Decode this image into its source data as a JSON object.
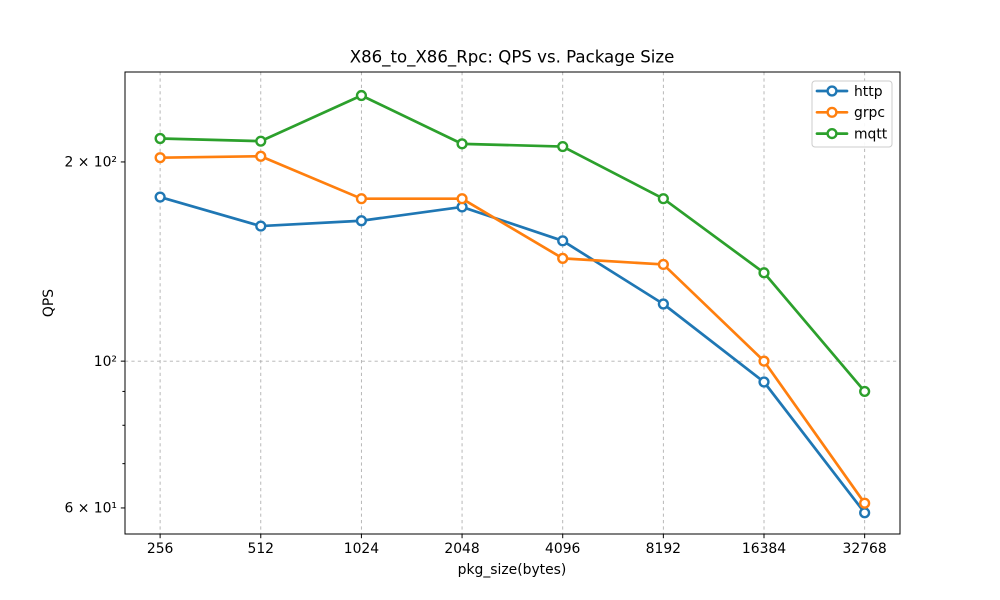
{
  "chart_data": {
    "type": "line",
    "title": "X86_to_X86_Rpc: QPS vs. Package Size",
    "xlabel": "pkg_size(bytes)",
    "ylabel": "QPS",
    "x_scale": "log2",
    "y_scale": "log10",
    "xlim": [
      201,
      41800
    ],
    "ylim": [
      54.8,
      273.5
    ],
    "x": [
      256,
      512,
      1024,
      2048,
      4096,
      8192,
      16384,
      32768
    ],
    "x_ticklabels": [
      "256",
      "512",
      "1024",
      "2048",
      "4096",
      "8192",
      "16384",
      "32768"
    ],
    "y_ticks": [
      {
        "value": 200,
        "label": "2 × 10²"
      },
      {
        "value": 100,
        "label": "10²"
      },
      {
        "value": 60,
        "label": "6 × 10¹"
      }
    ],
    "y_minor_ticks": [
      90,
      80,
      70
    ],
    "grid": {
      "vertical_at_x_ticks": true,
      "horizontal": [
        100
      ],
      "style": "dashed",
      "color": "#b0b0b0"
    },
    "legend_position": "upper right",
    "marker": "open-circle",
    "background": "#ffffff",
    "series": [
      {
        "name": "http",
        "color": "#1f77b4",
        "values": [
          177,
          160,
          163,
          171,
          152,
          122,
          93,
          59
        ]
      },
      {
        "name": "grpc",
        "color": "#ff7f0e",
        "values": [
          203,
          204,
          176,
          176,
          143,
          140,
          100,
          61
        ]
      },
      {
        "name": "mqtt",
        "color": "#2ca02c",
        "values": [
          217,
          215,
          252,
          213,
          211,
          176,
          136,
          90
        ]
      }
    ]
  }
}
